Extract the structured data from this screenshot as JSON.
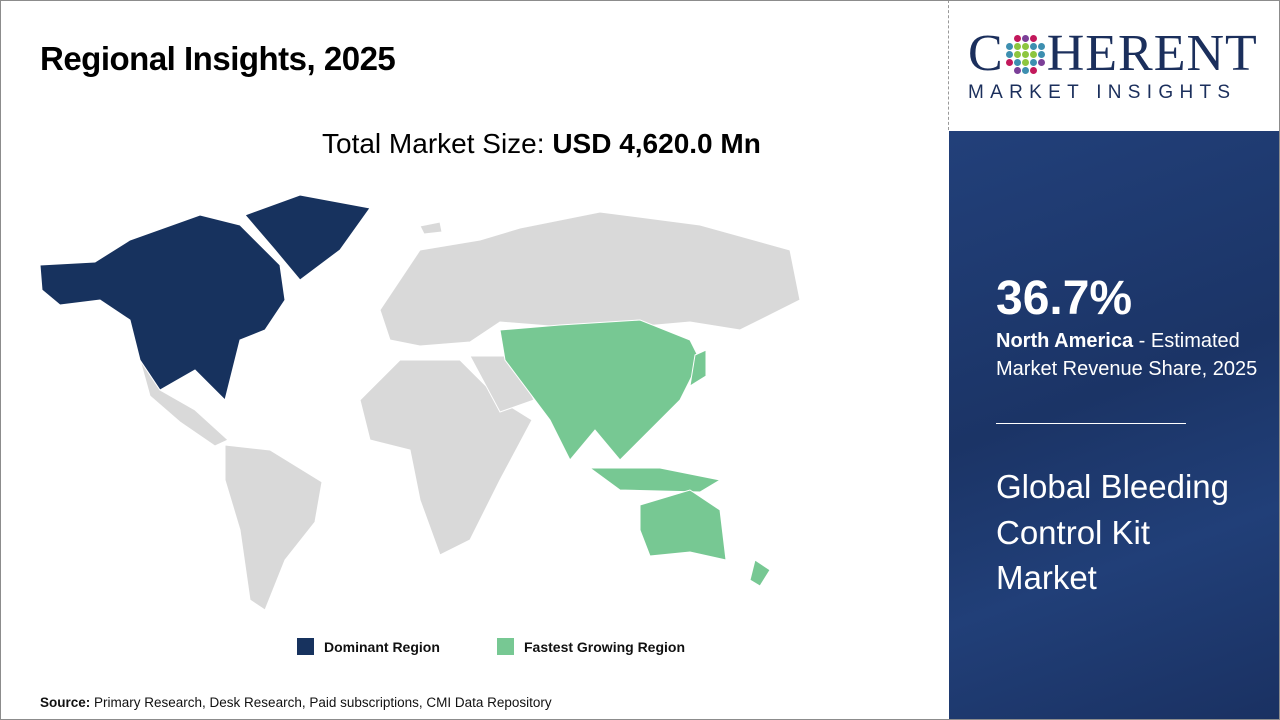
{
  "header": {
    "title": "Regional Insights, 2025"
  },
  "market": {
    "label": "Total Market Size: ",
    "value": "USD 4,620.0 Mn"
  },
  "legend": [
    {
      "label": "Dominant Region",
      "color": "#17325e"
    },
    {
      "label": "Fastest Growing Region",
      "color": "#77c893"
    }
  ],
  "source": {
    "label": "Source:",
    "text": " Primary Research, Desk Research, Paid subscriptions, CMI Data Repository"
  },
  "logo": {
    "top": "COHERENT",
    "bottom": "MARKET INSIGHTS"
  },
  "panel": {
    "share": "36.7%",
    "region": "North America",
    "desc": " - Estimated Market Revenue Share, 2025",
    "market_name": "Global Bleeding Control Kit Market"
  },
  "colors": {
    "dominant": "#17325e",
    "fastest": "#77c893",
    "other": "#d9d9d9",
    "panel": "#1f3a70"
  }
}
